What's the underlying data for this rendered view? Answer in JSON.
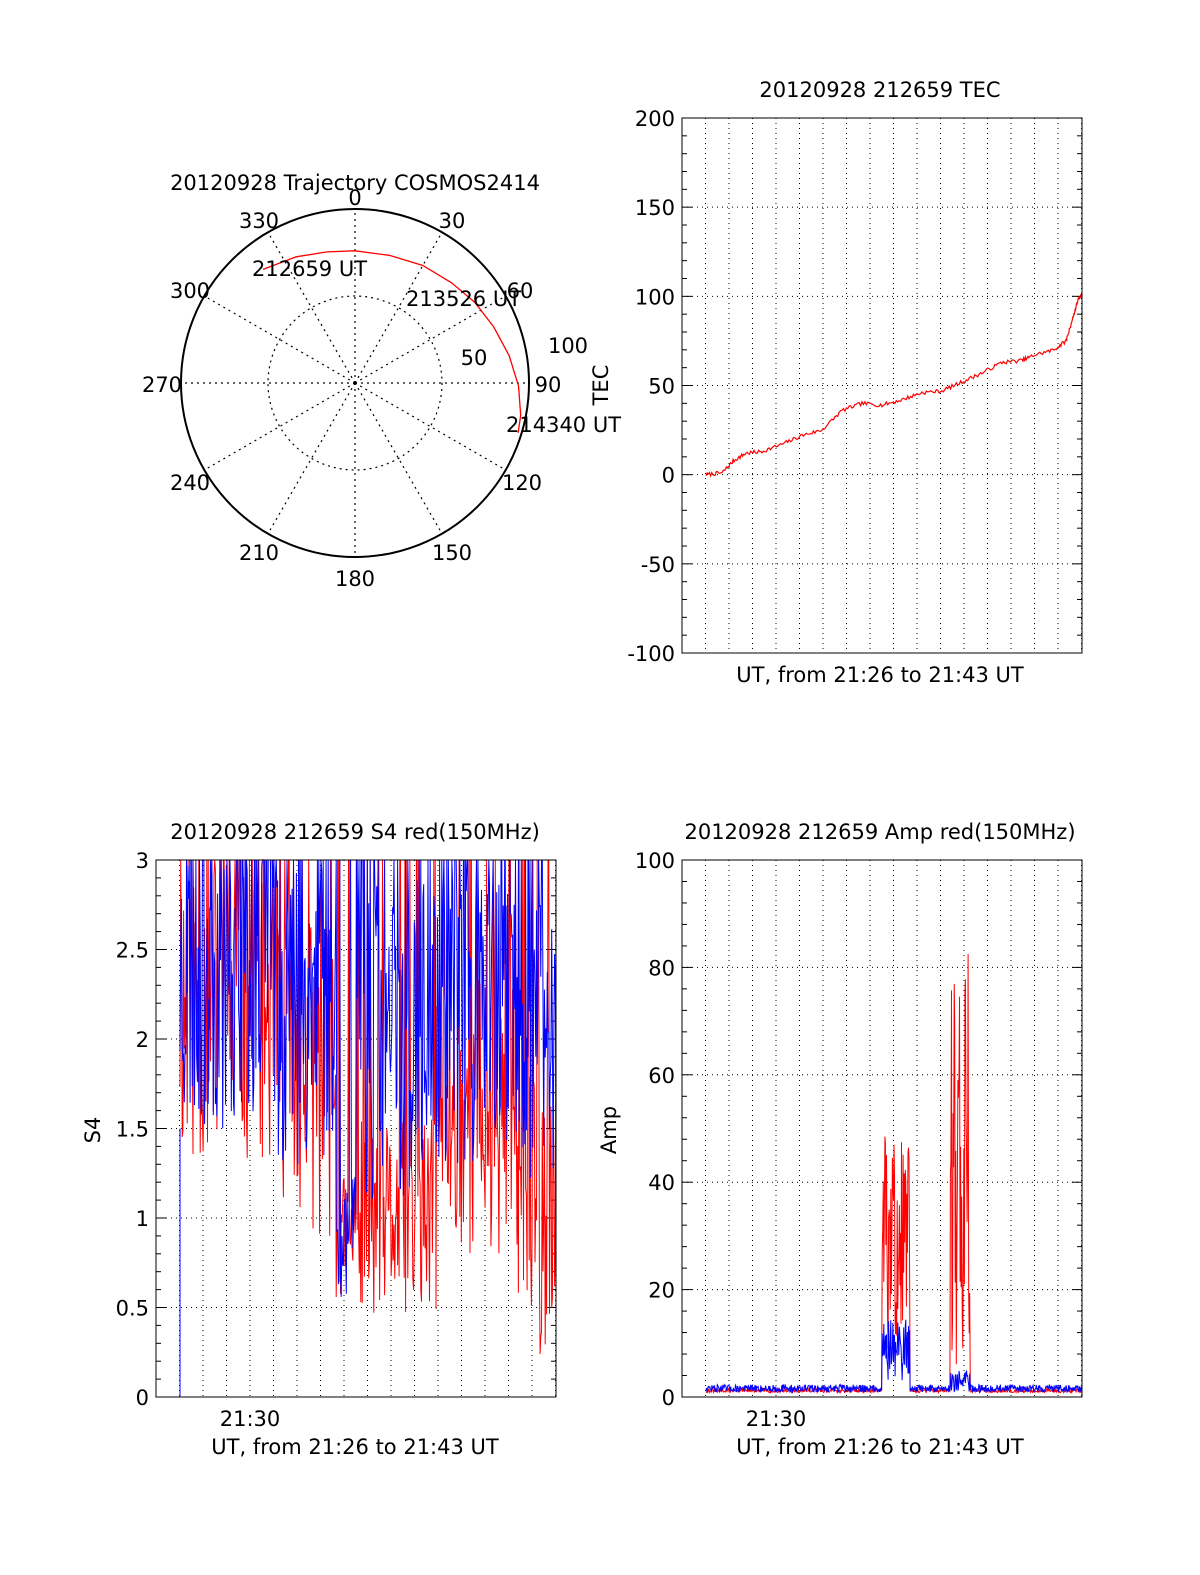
{
  "chart_data": [
    {
      "type": "polar",
      "title": "20120928 Trajectory COSMOS2414",
      "angle_ticks": [
        "0",
        "30",
        "60",
        "90",
        "120",
        "150",
        "180",
        "210",
        "240",
        "270",
        "300",
        "330"
      ],
      "ring_labels": [
        "50",
        "100"
      ],
      "radial_range": [
        0,
        100
      ],
      "trajectory_color": "#ff0000",
      "trajectory": [
        {
          "azimuth": 321,
          "elevation_distance": 84
        },
        {
          "azimuth": 335,
          "elevation_distance": 80
        },
        {
          "azimuth": 348,
          "elevation_distance": 77
        },
        {
          "azimuth": 0,
          "elevation_distance": 76
        },
        {
          "azimuth": 15,
          "elevation_distance": 76
        },
        {
          "azimuth": 30,
          "elevation_distance": 78
        },
        {
          "azimuth": 44,
          "elevation_distance": 80
        },
        {
          "azimuth": 56,
          "elevation_distance": 83
        },
        {
          "azimuth": 68,
          "elevation_distance": 86
        },
        {
          "azimuth": 80,
          "elevation_distance": 90
        },
        {
          "azimuth": 91,
          "elevation_distance": 94
        },
        {
          "azimuth": 101,
          "elevation_distance": 97
        },
        {
          "azimuth": 107,
          "elevation_distance": 98
        }
      ],
      "annotations": [
        "212659 UT",
        "213526 UT",
        "214340 UT"
      ]
    },
    {
      "type": "line",
      "title": "20120928 212659 TEC",
      "xlabel": "UT, from 21:26 to 21:43 UT",
      "ylabel": "TEC",
      "ylim": [
        -100,
        200
      ],
      "yticks": [
        "200",
        "150",
        "100",
        "50",
        "0",
        "-50",
        "-100"
      ],
      "grid": true,
      "series": [
        {
          "color": "#ff0000",
          "x": [
            0.06,
            0.1,
            0.13,
            0.16,
            0.2,
            0.25,
            0.3,
            0.35,
            0.4,
            0.45,
            0.5,
            0.55,
            0.6,
            0.65,
            0.7,
            0.75,
            0.8,
            0.85,
            0.88,
            0.93,
            0.96,
            0.98,
            0.99,
            1.0
          ],
          "y": [
            0,
            1,
            8,
            12,
            13,
            17,
            22,
            25,
            36,
            40,
            39,
            42,
            46,
            47,
            52,
            57,
            63,
            64,
            67,
            70,
            75,
            90,
            98,
            101
          ]
        }
      ]
    },
    {
      "type": "line",
      "title": "20120928 212659 S4 red(150MHz)",
      "xlabel": "UT, from 21:26 to 21:43 UT",
      "ylabel": "S4",
      "xtick_label": "21:30",
      "ylim": [
        0,
        3
      ],
      "yticks": [
        "3",
        "2.5",
        "2",
        "1.5",
        "1",
        "0.5",
        "0"
      ],
      "grid": true,
      "series": [
        {
          "color": "#ff0000"
        },
        {
          "color": "#0000ff"
        }
      ]
    },
    {
      "type": "line",
      "title": "20120928 212659 Amp red(150MHz)",
      "xlabel": "UT, from 21:26 to 21:43 UT",
      "ylabel": "Amp",
      "xtick_label": "21:30",
      "ylim": [
        0,
        100
      ],
      "yticks": [
        "100",
        "80",
        "60",
        "40",
        "20",
        "0"
      ],
      "grid": true,
      "series": [
        {
          "color": "#ff0000"
        },
        {
          "color": "#0000ff"
        }
      ]
    }
  ]
}
